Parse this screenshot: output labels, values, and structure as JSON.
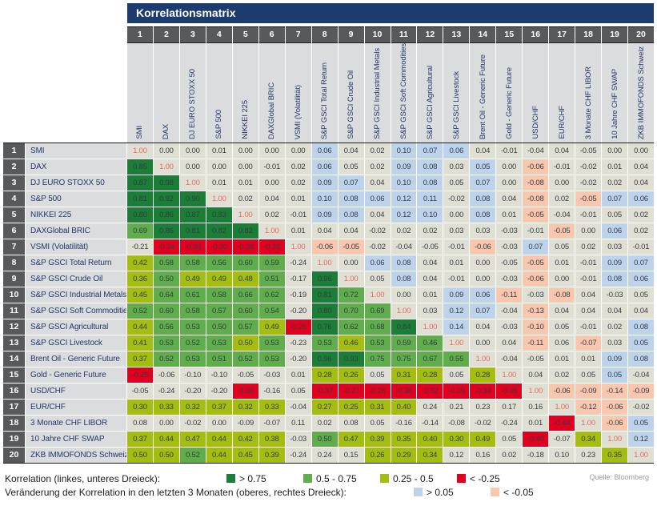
{
  "title": "Korrelationsmatrix",
  "source": "Quelle: Bloomberg",
  "colors": {
    "dg": "#1b7e36",
    "mg": "#5fae4b",
    "ol": "#a4bd11",
    "rd": "#e3001f",
    "bl": "#bdd2eb",
    "sa": "#f8c7ae",
    "be": "#dfdfd3",
    "di": "#dfdfd3",
    "diag_text": "#e96a60",
    "title_bar_bg": "#1c3b6e",
    "header_num_bg": "#58595b",
    "label_bg": "#dbdcdd"
  },
  "chart_data": {
    "type": "heatmap",
    "title": "Korrelationsmatrix",
    "legend_note": "lower-left triangle = correlation, upper-right triangle = 3-month change in correlation",
    "labels": [
      "SMI",
      "DAX",
      "DJ EURO STOXX 50",
      "S&P 500",
      "NIKKEI 225",
      "DAXGlobal BRIC",
      "VSMI (Volatilität)",
      "S&P GSCI Total Return",
      "S&P GSCI Crude Oil",
      "S&P GSCI Industrial Metals",
      "S&P GSCI Soft Commodities",
      "S&P GSCI Agricultural",
      "S&P GSCI Livestock",
      "Brent Oil - Generic Future",
      "Gold - Generic Future",
      "USD/CHF",
      "EUR/CHF",
      "3 Monate CHF LIBOR",
      "10 Jahre CHF SWAP",
      "ZKB IMMOFONDS Schweiz"
    ],
    "values": [
      [
        "1.00",
        "0.00",
        "0.00",
        "0.01",
        "0.00",
        "0.00",
        "0.00",
        "0.06",
        "0.04",
        "0.02",
        "0.10",
        "0.07",
        "0.06",
        "0.04",
        "-0.01",
        "-0.04",
        "0.04",
        "-0.05",
        "0.00",
        "0.00"
      ],
      [
        "0.85",
        "1.00",
        "0.00",
        "0.00",
        "0.00",
        "-0.01",
        "0.02",
        "0.06",
        "0.05",
        "0.02",
        "0.09",
        "0.08",
        "0.03",
        "0.05",
        "0.00",
        "-0.06",
        "-0.01",
        "-0.02",
        "0.01",
        "0.04"
      ],
      [
        "0.87",
        "0.98",
        "1.00",
        "0.01",
        "0.01",
        "0.00",
        "0.02",
        "0.09",
        "0.07",
        "0.04",
        "0.10",
        "0.08",
        "0.05",
        "0.07",
        "0.00",
        "-0.08",
        "0.00",
        "-0.02",
        "0.02",
        "0.04"
      ],
      [
        "0.81",
        "0.92",
        "0.90",
        "1.00",
        "0.02",
        "0.04",
        "0.01",
        "0.10",
        "0.08",
        "0.06",
        "0.12",
        "0.11",
        "-0.02",
        "0.08",
        "0.04",
        "-0.08",
        "0.02",
        "-0.05",
        "0.07",
        "0.06"
      ],
      [
        "0.80",
        "0.86",
        "0.87",
        "0.83",
        "1.00",
        "0.02",
        "-0.01",
        "0.09",
        "0.08",
        "0.04",
        "0.12",
        "0.10",
        "0.00",
        "0.08",
        "0.01",
        "-0.05",
        "-0.04",
        "-0.01",
        "0.05",
        "0.02"
      ],
      [
        "0.69",
        "0.86",
        "0.81",
        "0.82",
        "0.82",
        "1.00",
        "0.01",
        "0.04",
        "0.04",
        "-0.02",
        "0.02",
        "0.02",
        "0.03",
        "0.03",
        "-0.03",
        "-0.01",
        "-0.05",
        "0.00",
        "0.06",
        "0.02"
      ],
      [
        "-0.21",
        "-0.34",
        "-0.38",
        "-0.30",
        "-0.38",
        "-0.38",
        "1.00",
        "-0.06",
        "-0.05",
        "-0.02",
        "-0.04",
        "-0.05",
        "-0.01",
        "-0.06",
        "-0.03",
        "0.07",
        "0.05",
        "0.02",
        "0.03",
        "-0.01"
      ],
      [
        "0.42",
        "0.58",
        "0.58",
        "0.56",
        "0.60",
        "0.59",
        "-0.24",
        "1.00",
        "0.00",
        "0.06",
        "0.08",
        "0.04",
        "0.01",
        "0.00",
        "-0.05",
        "-0.05",
        "0.01",
        "-0.01",
        "0.09",
        "0.07"
      ],
      [
        "0.36",
        "0.50",
        "0.49",
        "0.49",
        "0.48",
        "0.51",
        "-0.17",
        "0.96",
        "1.00",
        "0.05",
        "0.08",
        "0.04",
        "-0.01",
        "0.00",
        "-0.03",
        "-0.06",
        "0.00",
        "-0.01",
        "0.08",
        "0.06"
      ],
      [
        "0.45",
        "0.64",
        "0.61",
        "0.58",
        "0.66",
        "0.62",
        "-0.19",
        "0.81",
        "0.72",
        "1.00",
        "0.00",
        "0.01",
        "0.09",
        "0.06",
        "-0.11",
        "-0.03",
        "-0.08",
        "0.04",
        "-0.03",
        "0.05"
      ],
      [
        "0.52",
        "0.60",
        "0.58",
        "0.57",
        "0.60",
        "0.54",
        "-0.20",
        "0.80",
        "0.70",
        "0.69",
        "1.00",
        "0.03",
        "0.12",
        "0.07",
        "-0.04",
        "-0.13",
        "0.04",
        "0.04",
        "0.04",
        "0.04"
      ],
      [
        "0.44",
        "0.56",
        "0.53",
        "0.50",
        "0.57",
        "0.49",
        "-0.26",
        "0.76",
        "0.62",
        "0.68",
        "0.84",
        "1.00",
        "0.14",
        "0.04",
        "-0.03",
        "-0.10",
        "0.05",
        "-0.01",
        "0.02",
        "0.08"
      ],
      [
        "0.41",
        "0.53",
        "0.52",
        "0.53",
        "0.50",
        "0.53",
        "-0.23",
        "0.53",
        "0.46",
        "0.53",
        "0.59",
        "0.46",
        "1.00",
        "0.00",
        "0.04",
        "-0.11",
        "0.06",
        "-0.07",
        "0.03",
        "0.05"
      ],
      [
        "0.37",
        "0.52",
        "0.53",
        "0.51",
        "0.52",
        "0.53",
        "-0.20",
        "0.96",
        "0.93",
        "0.75",
        "0.75",
        "0.67",
        "0.55",
        "1.00",
        "-0.04",
        "-0.05",
        "0.01",
        "0.01",
        "0.09",
        "0.08"
      ],
      [
        "-0.25",
        "-0.06",
        "-0.10",
        "-0.10",
        "-0.05",
        "-0.03",
        "0.01",
        "0.28",
        "0.26",
        "0.05",
        "0.31",
        "0.28",
        "0.05",
        "0.28",
        "1.00",
        "0.04",
        "0.02",
        "0.05",
        "0.05",
        "-0.04"
      ],
      [
        "-0.05",
        "-0.24",
        "-0.20",
        "-0.20",
        "-0.30",
        "-0.16",
        "0.05",
        "-0.37",
        "-0.27",
        "-0.26",
        "-0.36",
        "-0.52",
        "-0.29",
        "-0.34",
        "-0.46",
        "1.00",
        "-0.06",
        "-0.09",
        "-0.14",
        "-0.09"
      ],
      [
        "0.30",
        "0.33",
        "0.32",
        "0.37",
        "0.32",
        "0.33",
        "-0.04",
        "0.27",
        "0.25",
        "0.31",
        "0.40",
        "0.24",
        "0.21",
        "0.23",
        "0.17",
        "0.16",
        "1.00",
        "-0.12",
        "-0.06",
        "-0.02"
      ],
      [
        "0.08",
        "0.00",
        "-0.02",
        "0.00",
        "-0.09",
        "-0.07",
        "0.11",
        "0.02",
        "0.08",
        "0.05",
        "-0.16",
        "-0.14",
        "-0.08",
        "-0.02",
        "-0.24",
        "0.01",
        "-0.44",
        "1.00",
        "-0.06",
        "0.05"
      ],
      [
        "0.37",
        "0.44",
        "0.47",
        "0.44",
        "0.42",
        "0.38",
        "-0.03",
        "0.50",
        "0.47",
        "0.39",
        "0.35",
        "0.40",
        "0.30",
        "0.49",
        "0.05",
        "-0.40",
        "-0.07",
        "0.34",
        "1.00",
        "0.12"
      ],
      [
        "0.50",
        "0.50",
        "0.52",
        "0.44",
        "0.45",
        "0.39",
        "-0.24",
        "0.24",
        "0.15",
        "0.26",
        "0.29",
        "0.34",
        "0.12",
        "0.16",
        "0.02",
        "-0.18",
        "0.10",
        "0.23",
        "0.35",
        "1.00"
      ]
    ],
    "cell_classes": [
      [
        "di",
        "be",
        "be",
        "be",
        "be",
        "be",
        "be",
        "bl",
        "be",
        "be",
        "bl",
        "bl",
        "bl",
        "be",
        "be",
        "be",
        "be",
        "be",
        "be",
        "be"
      ],
      [
        "dg",
        "di",
        "be",
        "be",
        "be",
        "be",
        "be",
        "bl",
        "be",
        "be",
        "bl",
        "bl",
        "be",
        "bl",
        "be",
        "sa",
        "be",
        "be",
        "be",
        "be"
      ],
      [
        "dg",
        "dg",
        "di",
        "be",
        "be",
        "be",
        "be",
        "bl",
        "bl",
        "be",
        "bl",
        "bl",
        "be",
        "bl",
        "be",
        "sa",
        "be",
        "be",
        "be",
        "be"
      ],
      [
        "dg",
        "dg",
        "dg",
        "di",
        "be",
        "be",
        "be",
        "bl",
        "bl",
        "bl",
        "bl",
        "bl",
        "be",
        "bl",
        "be",
        "sa",
        "be",
        "sa",
        "bl",
        "bl"
      ],
      [
        "dg",
        "dg",
        "dg",
        "dg",
        "di",
        "be",
        "be",
        "bl",
        "bl",
        "be",
        "bl",
        "bl",
        "be",
        "bl",
        "be",
        "sa",
        "be",
        "be",
        "be",
        "be"
      ],
      [
        "mg",
        "dg",
        "dg",
        "dg",
        "dg",
        "di",
        "be",
        "be",
        "be",
        "be",
        "be",
        "be",
        "be",
        "be",
        "be",
        "be",
        "sa",
        "be",
        "bl",
        "be"
      ],
      [
        "be",
        "rd",
        "rd",
        "rd",
        "rd",
        "rd",
        "di",
        "sa",
        "sa",
        "be",
        "be",
        "be",
        "be",
        "sa",
        "be",
        "bl",
        "be",
        "be",
        "be",
        "be"
      ],
      [
        "ol",
        "mg",
        "mg",
        "mg",
        "mg",
        "mg",
        "be",
        "di",
        "be",
        "bl",
        "bl",
        "be",
        "be",
        "be",
        "be",
        "sa",
        "be",
        "be",
        "bl",
        "bl"
      ],
      [
        "ol",
        "mg",
        "ol",
        "ol",
        "ol",
        "mg",
        "be",
        "dg",
        "di",
        "be",
        "bl",
        "be",
        "be",
        "be",
        "be",
        "sa",
        "be",
        "be",
        "bl",
        "bl"
      ],
      [
        "ol",
        "mg",
        "mg",
        "mg",
        "mg",
        "mg",
        "be",
        "dg",
        "mg",
        "di",
        "be",
        "be",
        "bl",
        "bl",
        "sa",
        "be",
        "sa",
        "be",
        "be",
        "be"
      ],
      [
        "mg",
        "mg",
        "mg",
        "mg",
        "mg",
        "mg",
        "be",
        "dg",
        "mg",
        "mg",
        "di",
        "be",
        "bl",
        "bl",
        "be",
        "sa",
        "be",
        "be",
        "be",
        "be"
      ],
      [
        "ol",
        "mg",
        "mg",
        "mg",
        "mg",
        "ol",
        "rd",
        "dg",
        "mg",
        "mg",
        "dg",
        "di",
        "bl",
        "be",
        "be",
        "sa",
        "be",
        "be",
        "be",
        "bl"
      ],
      [
        "ol",
        "mg",
        "mg",
        "mg",
        "ol",
        "mg",
        "be",
        "mg",
        "ol",
        "mg",
        "mg",
        "mg",
        "di",
        "be",
        "be",
        "sa",
        "be",
        "sa",
        "be",
        "bl"
      ],
      [
        "ol",
        "mg",
        "mg",
        "mg",
        "mg",
        "mg",
        "be",
        "dg",
        "dg",
        "mg",
        "mg",
        "mg",
        "mg",
        "di",
        "be",
        "be",
        "be",
        "be",
        "bl",
        "bl"
      ],
      [
        "rd",
        "be",
        "be",
        "be",
        "be",
        "be",
        "be",
        "ol",
        "ol",
        "be",
        "ol",
        "ol",
        "be",
        "ol",
        "di",
        "be",
        "be",
        "be",
        "bl",
        "be"
      ],
      [
        "be",
        "be",
        "be",
        "be",
        "rd",
        "be",
        "be",
        "rd",
        "rd",
        "rd",
        "rd",
        "rd",
        "rd",
        "rd",
        "rd",
        "di",
        "sa",
        "sa",
        "sa",
        "sa"
      ],
      [
        "ol",
        "ol",
        "ol",
        "ol",
        "ol",
        "ol",
        "be",
        "ol",
        "ol",
        "ol",
        "ol",
        "be",
        "be",
        "be",
        "be",
        "be",
        "di",
        "sa",
        "sa",
        "be"
      ],
      [
        "be",
        "be",
        "be",
        "be",
        "be",
        "be",
        "be",
        "be",
        "be",
        "be",
        "be",
        "be",
        "be",
        "be",
        "be",
        "be",
        "rd",
        "di",
        "sa",
        "bl"
      ],
      [
        "ol",
        "ol",
        "ol",
        "ol",
        "ol",
        "ol",
        "be",
        "mg",
        "ol",
        "ol",
        "ol",
        "ol",
        "ol",
        "ol",
        "be",
        "rd",
        "be",
        "ol",
        "di",
        "bl"
      ],
      [
        "ol",
        "ol",
        "mg",
        "ol",
        "ol",
        "ol",
        "be",
        "be",
        "be",
        "ol",
        "ol",
        "ol",
        "be",
        "be",
        "be",
        "be",
        "be",
        "be",
        "ol",
        "di"
      ]
    ]
  },
  "legend": {
    "rows": [
      {
        "label": "Korrelation (linkes, unteres Dreieck):",
        "label_width": 277,
        "items": [
          {
            "color": "dg",
            "label": "> 0.75"
          },
          {
            "color": "mg",
            "label": "0.5 - 0.75"
          },
          {
            "color": "ol",
            "label": "0.25 - 0.5"
          },
          {
            "color": "rd",
            "label": "< -0.25"
          }
        ]
      },
      {
        "label": "Veränderung der Korrelation in den letzten 3 Monaten (oberes, rechtes Dreieck):",
        "label_width": 511,
        "items": [
          {
            "color": "bl",
            "label": "> 0.05"
          },
          {
            "color": "sa",
            "label": "< -0.05"
          }
        ]
      }
    ]
  }
}
